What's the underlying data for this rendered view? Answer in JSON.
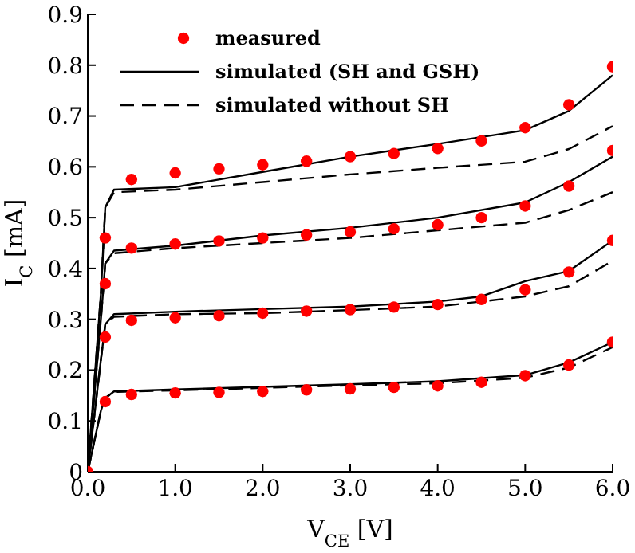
{
  "chart_data": {
    "type": "line",
    "xlabel": "V$_{CE}$ [V]",
    "ylabel": "I$_{C}$ [mA]",
    "xlim": [
      0,
      6
    ],
    "ylim": [
      0,
      0.9
    ],
    "xticks": [
      {
        "value": 0,
        "label": "0.0"
      },
      {
        "value": 1,
        "label": "1.0"
      },
      {
        "value": 2,
        "label": "2.0"
      },
      {
        "value": 3,
        "label": "3.0"
      },
      {
        "value": 4,
        "label": "4.0"
      },
      {
        "value": 5,
        "label": "5.0"
      },
      {
        "value": 6,
        "label": "6.0"
      }
    ],
    "yticks": [
      0,
      0.1,
      0.2,
      0.3,
      0.4,
      0.5,
      0.6,
      0.7,
      0.8,
      0.9
    ],
    "grid": false,
    "legend": "top left",
    "series": [
      {
        "name": "measured",
        "type": "scatter",
        "marker": "circle",
        "color": "#ff0000",
        "x": [
          0,
          0.2,
          0.5,
          1,
          1.5,
          2,
          2.5,
          3,
          3.5,
          4,
          4.5,
          5,
          5.5,
          6,
          0.2,
          0.5,
          1,
          1.5,
          2,
          2.5,
          3,
          3.5,
          4,
          4.5,
          5,
          5.5,
          6,
          0.2,
          0.5,
          1,
          1.5,
          2,
          2.5,
          3,
          3.5,
          4,
          4.5,
          5,
          5.5,
          6,
          0.2,
          0.5,
          1,
          1.5,
          2,
          2.5,
          3,
          3.5,
          4,
          4.5,
          5,
          5.5,
          6
        ],
        "values": [
          0,
          0.46,
          0.575,
          0.588,
          0.596,
          0.604,
          0.611,
          0.62,
          0.626,
          0.636,
          0.651,
          0.677,
          0.722,
          0.797,
          0.37,
          0.44,
          0.448,
          0.454,
          0.46,
          0.466,
          0.472,
          0.478,
          0.486,
          0.5,
          0.523,
          0.562,
          0.632,
          0.265,
          0.298,
          0.303,
          0.307,
          0.312,
          0.316,
          0.319,
          0.324,
          0.329,
          0.339,
          0.358,
          0.393,
          0.455,
          0.138,
          0.152,
          0.155,
          0.156,
          0.158,
          0.161,
          0.163,
          0.166,
          0.169,
          0.176,
          0.189,
          0.21,
          0.255
        ]
      },
      {
        "name": "simulated (SH and GSH)",
        "type": "line",
        "line_style": "solid",
        "color": "#000000",
        "x": [
          0,
          0.15,
          0.2,
          0.3,
          1,
          2,
          3,
          4,
          5,
          5.5,
          6
        ],
        "values": [
          0,
          0.35,
          0.52,
          0.555,
          0.56,
          0.59,
          0.62,
          0.645,
          0.672,
          0.71,
          0.78
        ]
      },
      {
        "name": "simulated without SH",
        "type": "line",
        "line_style": "dashed",
        "color": "#000000",
        "x": [
          0,
          0.15,
          0.2,
          0.3,
          1,
          2,
          3,
          4,
          5,
          5.5,
          6
        ],
        "values": [
          0,
          0.35,
          0.52,
          0.55,
          0.555,
          0.57,
          0.585,
          0.598,
          0.61,
          0.635,
          0.68
        ]
      },
      {
        "type": "line",
        "line_style": "solid",
        "color": "#000000",
        "x": [
          0,
          0.15,
          0.2,
          0.3,
          1,
          2,
          3,
          4,
          5,
          5.5,
          6
        ],
        "values": [
          0,
          0.3,
          0.41,
          0.435,
          0.445,
          0.465,
          0.48,
          0.5,
          0.53,
          0.57,
          0.62
        ]
      },
      {
        "type": "line",
        "line_style": "dashed",
        "color": "#000000",
        "x": [
          0,
          0.15,
          0.2,
          0.3,
          1,
          2,
          3,
          4,
          5,
          5.5,
          6
        ],
        "values": [
          0,
          0.3,
          0.41,
          0.43,
          0.44,
          0.45,
          0.46,
          0.475,
          0.49,
          0.515,
          0.55
        ]
      },
      {
        "type": "line",
        "line_style": "solid",
        "color": "#000000",
        "x": [
          0,
          0.15,
          0.2,
          0.3,
          1,
          2,
          3,
          4,
          4.5,
          5,
          5.5,
          6
        ],
        "values": [
          0,
          0.22,
          0.29,
          0.31,
          0.315,
          0.32,
          0.325,
          0.335,
          0.345,
          0.375,
          0.395,
          0.455
        ]
      },
      {
        "type": "line",
        "line_style": "dashed",
        "color": "#000000",
        "x": [
          0,
          0.15,
          0.2,
          0.3,
          1,
          2,
          3,
          4,
          5,
          5.5,
          6
        ],
        "values": [
          0,
          0.22,
          0.29,
          0.305,
          0.31,
          0.312,
          0.318,
          0.325,
          0.345,
          0.365,
          0.415
        ]
      },
      {
        "type": "line",
        "line_style": "solid",
        "color": "#000000",
        "x": [
          0,
          0.15,
          0.2,
          0.3,
          1,
          2,
          3,
          4,
          5,
          5.5,
          6
        ],
        "values": [
          0,
          0.12,
          0.145,
          0.158,
          0.162,
          0.167,
          0.172,
          0.178,
          0.19,
          0.215,
          0.255
        ]
      },
      {
        "type": "line",
        "line_style": "dashed",
        "color": "#000000",
        "x": [
          0,
          0.15,
          0.2,
          0.3,
          1,
          2,
          3,
          4,
          5,
          5.5,
          6
        ],
        "values": [
          0,
          0.12,
          0.145,
          0.157,
          0.16,
          0.165,
          0.17,
          0.174,
          0.185,
          0.205,
          0.245
        ]
      }
    ]
  }
}
